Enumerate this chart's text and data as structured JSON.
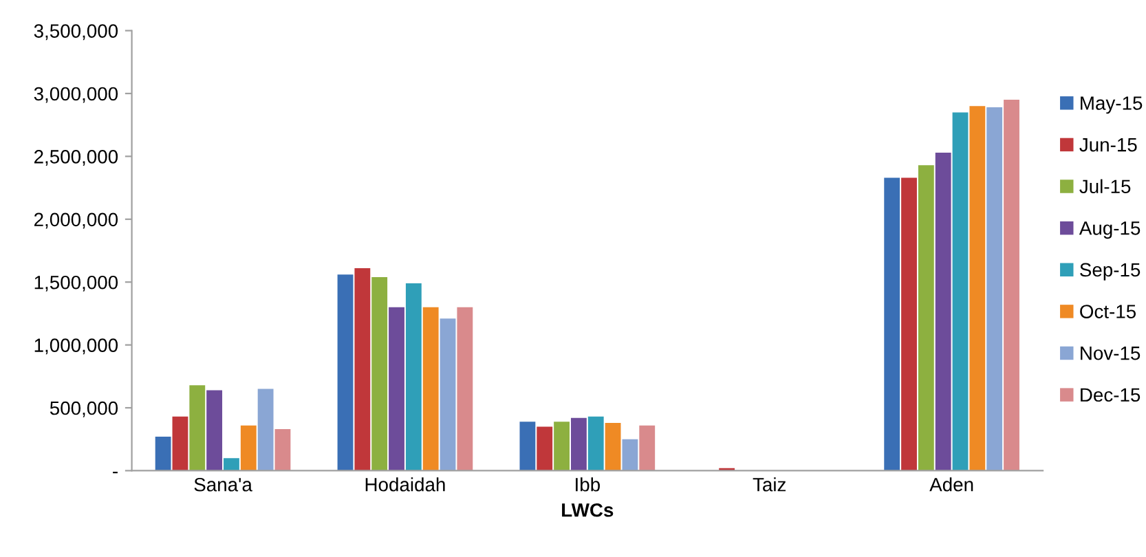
{
  "chart_data": {
    "type": "bar",
    "xlabel": "LWCs",
    "categories": [
      "Sana'a",
      "Hodaidah",
      "Ibb",
      "Taiz",
      "Aden"
    ],
    "series": [
      {
        "name": "May-15",
        "color": "#3a6fb5",
        "values": [
          270000,
          1560000,
          390000,
          null,
          2330000
        ]
      },
      {
        "name": "Jun-15",
        "color": "#c0373a",
        "values": [
          430000,
          1610000,
          350000,
          20000,
          2330000
        ]
      },
      {
        "name": "Jul-15",
        "color": "#8db040",
        "values": [
          680000,
          1540000,
          390000,
          null,
          2430000
        ]
      },
      {
        "name": "Aug-15",
        "color": "#6d4c9a",
        "values": [
          640000,
          1300000,
          420000,
          null,
          2530000
        ]
      },
      {
        "name": "Sep-15",
        "color": "#2f9fb8",
        "values": [
          100000,
          1490000,
          430000,
          null,
          2850000
        ]
      },
      {
        "name": "Oct-15",
        "color": "#ef8a24",
        "values": [
          360000,
          1300000,
          380000,
          null,
          2900000
        ]
      },
      {
        "name": "Nov-15",
        "color": "#8aa6d4",
        "values": [
          650000,
          1210000,
          250000,
          null,
          2890000
        ]
      },
      {
        "name": "Dec-15",
        "color": "#d98a8c",
        "values": [
          330000,
          1300000,
          360000,
          null,
          2950000
        ]
      }
    ],
    "ylim": [
      0,
      3500000
    ],
    "yticks": [
      {
        "value": 0,
        "label": "-"
      },
      {
        "value": 500000,
        "label": "500,000"
      },
      {
        "value": 1000000,
        "label": "1,000,000"
      },
      {
        "value": 1500000,
        "label": "1,500,000"
      },
      {
        "value": 2000000,
        "label": "2,000,000"
      },
      {
        "value": 2500000,
        "label": "2,500,000"
      },
      {
        "value": 3000000,
        "label": "3,000,000"
      },
      {
        "value": 3500000,
        "label": "3,500,000"
      }
    ],
    "grid": false,
    "legend": "right"
  }
}
